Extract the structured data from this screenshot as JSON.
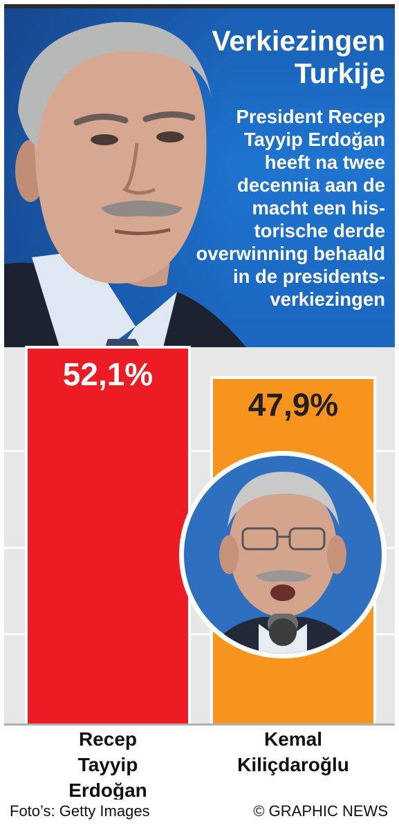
{
  "header": {
    "title_lines": [
      "Verkiezingen",
      "Turkije"
    ],
    "subtitle_lines": [
      "President Recep",
      "Tayyip Erdoğan",
      "heeft na twee",
      "decennia aan de",
      "macht een his-",
      "torische derde",
      "overwinning behaald",
      "in de presidents-",
      "verkiezingen"
    ]
  },
  "chart_data": {
    "type": "bar",
    "categories": [
      "Recep Tayyip Erdoğan",
      "Kemal Kiliçdaroğlu"
    ],
    "category_lines": [
      [
        "Recep",
        "Tayyip",
        "Erdoğan"
      ],
      [
        "Kemal",
        "Kiliçdaroğlu"
      ]
    ],
    "values": [
      52.1,
      47.9
    ],
    "value_labels": [
      "52,1%",
      "47,9%"
    ],
    "colors": [
      "#ed1c24",
      "#f7941d"
    ],
    "label_colors": [
      "#ffffff",
      "#231f20"
    ],
    "ylim": [
      0,
      52.1
    ],
    "grid": true
  },
  "footer": {
    "photo_credit": "Foto’s: Getty Images",
    "source": "© GRAPHIC NEWS"
  },
  "icons": {
    "header_photo": "erdogan-portrait",
    "inset_photo": "kilicdaroglu-portrait"
  }
}
